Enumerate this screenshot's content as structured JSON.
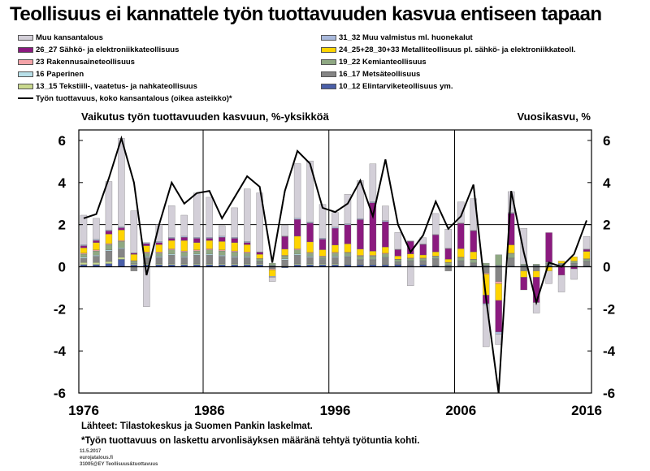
{
  "title": "Teollisuus ei kannattele työn tuottavuuden kasvua entiseen tapaan",
  "legend": [
    {
      "label": "Muu kansantalous",
      "color": "#d3cfd8"
    },
    {
      "label": "31_32 Muu valmistus ml. huonekalut",
      "color": "#a9b9dc"
    },
    {
      "label": "26_27 Sähkö- ja elektroniikkateollisuus",
      "color": "#8b1a7f"
    },
    {
      "label": "24_25+28_30+33 Metalliteollisuus pl. sähkö- ja elektroniikkateoll.",
      "color": "#ffd400"
    },
    {
      "label": "23 Rakennusaineteollisuus",
      "color": "#f4a3a8"
    },
    {
      "label": "19_22 Kemianteollisuus",
      "color": "#8fa883"
    },
    {
      "label": "16 Paperinen",
      "color": "#b7dfe8"
    },
    {
      "label": "16_17 Metsäteollisuus",
      "color": "#858585"
    },
    {
      "label": "13_15 Tekstiili-, vaatetus- ja nahkateollisuus",
      "color": "#c9d98e"
    },
    {
      "label": "10_12 Elintarviketeollisuus ym.",
      "color": "#4a5fa8"
    },
    {
      "label": "Työn tuottavuus, koko kansantalous (oikea asteikko)*",
      "color": "#000000",
      "is_line": true
    }
  ],
  "subtitle_left": "Vaikutus työn tuottavuuden kasvuun, %-yksikköä",
  "subtitle_right": "Vuosikasvu, %",
  "source": "Lähteet: Tilastokeskus ja Suomen Pankin laskelmat.",
  "footnote": "*Työn tuottavuus on laskettu arvonlisäyksen määränä tehtyä työtuntia kohti.",
  "meta": {
    "date": "11.5.2017",
    "email": "eurojatalous.fi",
    "code": "31005@EY  Teollisuus&tuottavuus"
  },
  "chart_data": {
    "type": "bar",
    "stacked": true,
    "x": [
      1976,
      1977,
      1978,
      1979,
      1980,
      1981,
      1982,
      1983,
      1984,
      1985,
      1986,
      1987,
      1988,
      1989,
      1990,
      1991,
      1992,
      1993,
      1994,
      1995,
      1996,
      1997,
      1998,
      1999,
      2000,
      2001,
      2002,
      2003,
      2004,
      2005,
      2006,
      2007,
      2008,
      2009,
      2010,
      2011,
      2012,
      2013,
      2014,
      2015,
      2016
    ],
    "x_ticks": [
      "1976",
      "1986",
      "1996",
      "2006",
      "2016"
    ],
    "ylim_left": [
      -6,
      6.5
    ],
    "ylim_right": [
      -6,
      6.5
    ],
    "y_ticks": [
      -6,
      -4,
      -2,
      0,
      2,
      4,
      6
    ],
    "grid": "horizontal at 2 and 0; vertical at decade tick years",
    "series": [
      {
        "name": "10_12 Elintarviketeollisuus ym.",
        "values": [
          0.1,
          0.1,
          0.15,
          0.35,
          0.1,
          0.1,
          0.1,
          0.1,
          0.1,
          0.1,
          0.1,
          0.1,
          0.1,
          0.1,
          0.1,
          0.05,
          -0.05,
          0.1,
          0.1,
          0.1,
          0.1,
          0.1,
          0.1,
          0.1,
          0.1,
          0.1,
          0.05,
          0.1,
          0.05,
          0.05,
          0.05,
          0.05,
          0.05,
          0.05,
          0.05,
          0.05,
          0.05,
          0.05,
          0.05,
          0.05,
          0.05
        ]
      },
      {
        "name": "13_15 Tekstiili-, vaatetus- ja nahkateollisuus",
        "values": [
          0.1,
          0.1,
          0.1,
          0.1,
          0.05,
          0.05,
          0.05,
          0.05,
          0.05,
          0.05,
          0.05,
          0.05,
          0.05,
          0.05,
          0.05,
          0.02,
          0.02,
          0.05,
          0.05,
          0.05,
          0.05,
          0.03,
          0.03,
          0.03,
          0.03,
          0.02,
          0.02,
          0.02,
          0.02,
          0.02,
          0.02,
          0.02,
          0.01,
          0.01,
          0.01,
          0.01,
          0.01,
          0.01,
          0.01,
          0.01,
          0.01
        ]
      },
      {
        "name": "16_17 Metsäteollisuus",
        "values": [
          0.2,
          0.3,
          0.5,
          0.4,
          -0.2,
          0.3,
          0.3,
          0.4,
          0.3,
          0.4,
          0.4,
          0.35,
          0.3,
          0.3,
          0.1,
          -0.1,
          0.3,
          0.4,
          0.3,
          0.2,
          0.3,
          0.35,
          0.2,
          0.2,
          0.3,
          0.1,
          0.2,
          0.15,
          0.3,
          -0.2,
          0.2,
          0.1,
          -0.3,
          -0.7,
          0.35,
          -0.2,
          -0.2,
          0.1,
          0.05,
          0.1,
          0.2
        ]
      },
      {
        "name": "16 Paperinen",
        "values": [
          0.05,
          0.05,
          0.05,
          0.05,
          0.02,
          0.05,
          0.05,
          0.05,
          0.05,
          0.05,
          0.05,
          0.05,
          0.05,
          0.05,
          0.02,
          0.0,
          0.05,
          0.05,
          0.05,
          0.03,
          0.05,
          0.03,
          0.03,
          0.03,
          0.03,
          0.02,
          0.02,
          0.02,
          0.02,
          0.02,
          0.02,
          0.02,
          0.01,
          0.01,
          0.01,
          0.01,
          0.01,
          0.01,
          0.01,
          0.01,
          0.01
        ]
      },
      {
        "name": "19_22 Kemianteollisuus",
        "values": [
          0.15,
          0.2,
          0.25,
          0.3,
          0.1,
          0.15,
          0.15,
          0.2,
          0.2,
          0.15,
          0.2,
          0.2,
          0.2,
          0.15,
          0.1,
          0.1,
          0.15,
          0.2,
          0.15,
          0.1,
          0.15,
          0.15,
          0.15,
          0.15,
          0.15,
          0.1,
          0.1,
          0.1,
          0.1,
          0.1,
          0.15,
          0.15,
          0.1,
          0.5,
          0.2,
          0.05,
          0.05,
          0.05,
          0.05,
          0.1,
          0.1
        ]
      },
      {
        "name": "23 Rakennusaineteollisuus",
        "values": [
          0.05,
          0.05,
          0.05,
          0.05,
          0.02,
          0.05,
          0.05,
          0.05,
          0.05,
          0.05,
          0.05,
          0.05,
          0.05,
          0.05,
          0.02,
          -0.05,
          0.02,
          0.05,
          0.03,
          0.03,
          0.03,
          0.03,
          0.03,
          0.03,
          0.03,
          0.02,
          0.02,
          0.02,
          0.02,
          0.02,
          0.02,
          0.02,
          -0.05,
          -0.1,
          0.02,
          0.0,
          0.0,
          0.0,
          0.0,
          0.0,
          0.01
        ]
      },
      {
        "name": "24_25+28_30+33 Metalliteollisuus pl. sähkö- ja elektroniikkateoll.",
        "values": [
          0.25,
          0.35,
          0.45,
          0.5,
          0.3,
          0.3,
          0.35,
          0.4,
          0.5,
          0.35,
          0.4,
          0.4,
          0.4,
          0.35,
          0.2,
          -0.3,
          0.3,
          0.6,
          0.5,
          0.3,
          0.35,
          0.4,
          0.3,
          0.2,
          0.3,
          0.15,
          0.2,
          0.15,
          0.2,
          0.15,
          0.4,
          0.35,
          -1.0,
          -0.8,
          0.4,
          -0.3,
          -0.3,
          -0.2,
          0.1,
          0.2,
          0.35
        ]
      },
      {
        "name": "26_27 Sähkö- ja elektroniikkateollisuus",
        "values": [
          0.1,
          0.1,
          0.15,
          0.1,
          0.05,
          0.1,
          0.1,
          0.1,
          0.15,
          0.2,
          0.1,
          0.2,
          0.2,
          0.1,
          0.1,
          0.0,
          0.6,
          0.8,
          0.9,
          0.5,
          0.8,
          0.9,
          1.4,
          2.3,
          1.2,
          0.3,
          0.6,
          0.5,
          0.8,
          0.5,
          1.2,
          1.0,
          -0.4,
          -1.5,
          1.5,
          -0.6,
          -1.2,
          1.4,
          -0.4,
          -0.1,
          0.1
        ]
      },
      {
        "name": "31_32 Muu valmistus ml. huonekalut",
        "values": [
          0.05,
          0.05,
          0.05,
          0.05,
          0.02,
          0.05,
          0.05,
          0.05,
          0.05,
          0.05,
          0.05,
          0.05,
          0.05,
          0.05,
          0.02,
          -0.05,
          0.02,
          0.05,
          0.05,
          0.05,
          0.05,
          0.05,
          0.05,
          0.05,
          0.05,
          0.02,
          0.02,
          0.02,
          0.02,
          0.02,
          0.02,
          0.02,
          -0.05,
          -0.1,
          0.03,
          0.0,
          0.0,
          0.0,
          0.0,
          0.0,
          0.01
        ]
      },
      {
        "name": "Muu kansantalous",
        "values": [
          1.4,
          1.0,
          2.3,
          4.2,
          2.0,
          -1.9,
          0.8,
          1.5,
          1.0,
          2.1,
          1.9,
          0.5,
          1.4,
          2.5,
          2.8,
          -0.2,
          0.5,
          2.6,
          2.9,
          1.6,
          0.7,
          1.4,
          1.8,
          1.8,
          0.7,
          0.8,
          -0.9,
          0.3,
          1.0,
          0.9,
          1.0,
          1.5,
          -2.0,
          -0.5,
          1.0,
          1.7,
          -0.5,
          -0.6,
          -0.8,
          -0.5,
          0.6
        ]
      }
    ],
    "line": {
      "name": "Työn tuottavuus, koko kansantalous (oikea asteikko)*",
      "values": [
        2.3,
        2.5,
        4.2,
        6.1,
        4.0,
        -0.4,
        2.0,
        4.0,
        3.0,
        3.5,
        3.6,
        2.3,
        3.3,
        4.3,
        3.8,
        0.2,
        3.6,
        5.5,
        4.9,
        2.8,
        2.6,
        3.0,
        4.1,
        2.4,
        5.1,
        2.0,
        0.7,
        1.5,
        3.1,
        1.8,
        2.4,
        3.9,
        -1.5,
        -6.0,
        3.6,
        0.7,
        -1.7,
        0.2,
        0.0,
        0.6,
        2.2
      ]
    }
  }
}
